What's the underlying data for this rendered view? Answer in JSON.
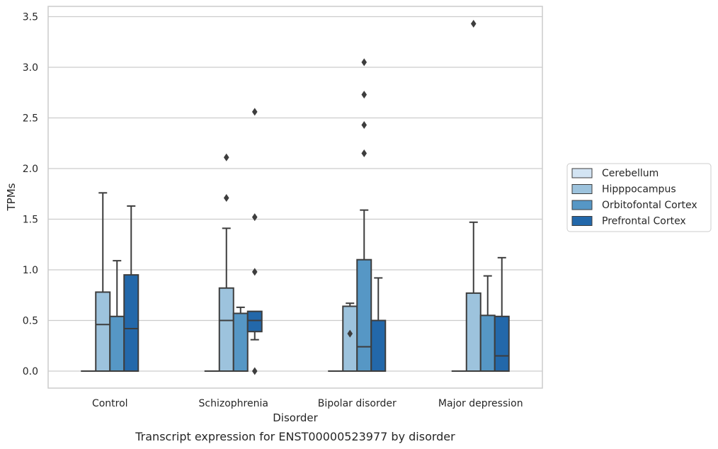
{
  "chart_data": {
    "type": "box",
    "caption": "Transcript expression for ENST00000523977 by disorder",
    "xlabel": "Disorder",
    "ylabel": "TPMs",
    "ylim": [
      -0.17,
      3.6
    ],
    "yticks": [
      0.0,
      0.5,
      1.0,
      1.5,
      2.0,
      2.5,
      3.0,
      3.5
    ],
    "ytick_labels": [
      "0.0",
      "0.5",
      "1.0",
      "1.5",
      "2.0",
      "2.5",
      "3.0",
      "3.5"
    ],
    "grid": true,
    "legend_position": "right",
    "categories": [
      "Control",
      "Schizophrenia",
      "Bipolar disorder",
      "Major depression"
    ],
    "series": [
      {
        "name": "Cerebellum",
        "color": "#d3e4f3",
        "boxes": [
          {
            "q1": 0,
            "median": 0,
            "q3": 0,
            "whisker_low": 0,
            "whisker_high": 0,
            "outliers": []
          },
          {
            "q1": 0,
            "median": 0,
            "q3": 0,
            "whisker_low": 0,
            "whisker_high": 0,
            "outliers": []
          },
          {
            "q1": 0,
            "median": 0,
            "q3": 0,
            "whisker_low": 0,
            "whisker_high": 0,
            "outliers": []
          },
          {
            "q1": 0,
            "median": 0,
            "q3": 0,
            "whisker_low": 0,
            "whisker_high": 0,
            "outliers": []
          }
        ]
      },
      {
        "name": "Hipppocampus",
        "color": "#9dc3dd",
        "boxes": [
          {
            "q1": 0,
            "median": 0.46,
            "q3": 0.78,
            "whisker_low": 0,
            "whisker_high": 1.76,
            "outliers": []
          },
          {
            "q1": 0,
            "median": 0.5,
            "q3": 0.82,
            "whisker_low": 0,
            "whisker_high": 1.41,
            "outliers": [
              2.11,
              1.71
            ]
          },
          {
            "q1": 0,
            "median": 0,
            "q3": 0.64,
            "whisker_low": 0,
            "whisker_high": 0.67,
            "outliers": [
              0.37
            ]
          },
          {
            "q1": 0,
            "median": 0,
            "q3": 0.77,
            "whisker_low": 0,
            "whisker_high": 1.47,
            "outliers": [
              3.43
            ]
          }
        ]
      },
      {
        "name": "Orbitofontal Cortex",
        "color": "#5697c5",
        "boxes": [
          {
            "q1": 0,
            "median": 0,
            "q3": 0.54,
            "whisker_low": 0,
            "whisker_high": 1.09,
            "outliers": []
          },
          {
            "q1": 0,
            "median": 0,
            "q3": 0.57,
            "whisker_low": 0,
            "whisker_high": 0.63,
            "outliers": []
          },
          {
            "q1": 0,
            "median": 0.24,
            "q3": 1.1,
            "whisker_low": 0,
            "whisker_high": 1.59,
            "outliers": [
              2.73,
              2.43,
              2.15,
              3.05
            ]
          },
          {
            "q1": 0,
            "median": 0,
            "q3": 0.55,
            "whisker_low": 0,
            "whisker_high": 0.94,
            "outliers": []
          }
        ]
      },
      {
        "name": "Prefrontal Cortex",
        "color": "#2368aa",
        "boxes": [
          {
            "q1": 0,
            "median": 0.42,
            "q3": 0.95,
            "whisker_low": 0,
            "whisker_high": 1.63,
            "outliers": []
          },
          {
            "q1": 0.39,
            "median": 0.5,
            "q3": 0.59,
            "whisker_low": 0.31,
            "whisker_high": 0.59,
            "outliers": [
              2.56,
              1.52,
              0.98,
              0
            ]
          },
          {
            "q1": 0,
            "median": 0,
            "q3": 0.5,
            "whisker_low": 0,
            "whisker_high": 0.92,
            "outliers": []
          },
          {
            "q1": 0,
            "median": 0.15,
            "q3": 0.54,
            "whisker_low": 0,
            "whisker_high": 1.12,
            "outliers": []
          }
        ]
      }
    ]
  }
}
